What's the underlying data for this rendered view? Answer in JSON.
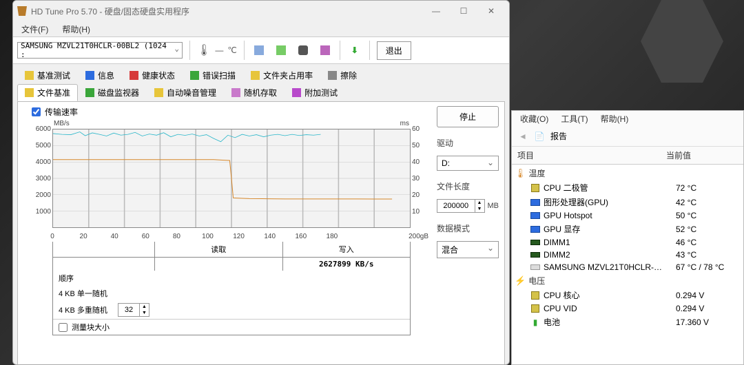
{
  "bg": {
    "base": "#2a2a2a"
  },
  "main": {
    "title": "HD Tune Pro 5.70 - 硬盘/固态硬盘实用程序",
    "menu": {
      "file": "文件(F)",
      "help": "帮助(H)"
    },
    "device": "SAMSUNG MZVL21T0HCLR-00BL2 (1024 :",
    "temp_dash": "—",
    "temp_unit": "℃",
    "exit": "退出",
    "tabs_row1": [
      {
        "label": "基准测试",
        "icon_bg": "#e7c53a"
      },
      {
        "label": "信息",
        "icon_bg": "#2d6cdf"
      },
      {
        "label": "健康状态",
        "icon_bg": "#d63a3a"
      },
      {
        "label": "错误扫描",
        "icon_bg": "#3aa63a"
      },
      {
        "label": "文件夹占用率",
        "icon_bg": "#e7c53a"
      },
      {
        "label": "擦除",
        "icon_bg": "#888"
      }
    ],
    "tabs_row2": [
      {
        "label": "文件基准",
        "icon_bg": "#e7c53a",
        "active": true
      },
      {
        "label": "磁盘监视器",
        "icon_bg": "#3aa63a"
      },
      {
        "label": "自动噪音管理",
        "icon_bg": "#e7c53a"
      },
      {
        "label": "随机存取",
        "icon_bg": "#c97acb"
      },
      {
        "label": "附加测试",
        "icon_bg": "#b84acb"
      }
    ],
    "chart": {
      "checkbox_label": "传输速率",
      "y_unit": "MB/s",
      "ms_unit": "ms",
      "x_unit": "200gB",
      "y_left": [
        6000,
        5000,
        4000,
        3000,
        2000,
        1000
      ],
      "y_right": [
        60,
        50,
        40,
        30,
        20,
        10
      ],
      "x_ticks": [
        0,
        20,
        40,
        60,
        80,
        100,
        120,
        140,
        160,
        180
      ],
      "x_max": 200,
      "y_max": 6000,
      "line1_color": "#26b6c9",
      "line2_color": "#d6872a",
      "grid_color": "#bbbbbb",
      "plot_bg": "#f3f3f3",
      "series1": [
        [
          0,
          5750
        ],
        [
          5,
          5700
        ],
        [
          10,
          5680
        ],
        [
          15,
          5850
        ],
        [
          18,
          5620
        ],
        [
          22,
          5790
        ],
        [
          26,
          5700
        ],
        [
          30,
          5600
        ],
        [
          34,
          5780
        ],
        [
          38,
          5650
        ],
        [
          42,
          5700
        ],
        [
          46,
          5820
        ],
        [
          50,
          5600
        ],
        [
          54,
          5720
        ],
        [
          58,
          5650
        ],
        [
          62,
          5800
        ],
        [
          66,
          5550
        ],
        [
          70,
          5700
        ],
        [
          74,
          5640
        ],
        [
          78,
          5720
        ],
        [
          82,
          5600
        ],
        [
          86,
          5680
        ],
        [
          90,
          5450
        ],
        [
          94,
          5250
        ],
        [
          98,
          5650
        ],
        [
          102,
          5500
        ],
        [
          106,
          5700
        ],
        [
          110,
          5600
        ],
        [
          114,
          5680
        ],
        [
          118,
          5550
        ],
        [
          122,
          5650
        ],
        [
          126,
          5700
        ],
        [
          130,
          5620
        ],
        [
          134,
          5700
        ],
        [
          138,
          5630
        ],
        [
          142,
          5680
        ],
        [
          146,
          5650
        ],
        [
          150,
          5700
        ]
      ],
      "series2": [
        [
          0,
          4150
        ],
        [
          10,
          4150
        ],
        [
          20,
          4150
        ],
        [
          30,
          4150
        ],
        [
          40,
          4150
        ],
        [
          50,
          4150
        ],
        [
          60,
          4150
        ],
        [
          70,
          4150
        ],
        [
          80,
          4150
        ],
        [
          90,
          4150
        ],
        [
          95,
          4120
        ],
        [
          99,
          4100
        ],
        [
          100,
          3000
        ],
        [
          101,
          1800
        ],
        [
          105,
          1780
        ],
        [
          110,
          1760
        ],
        [
          120,
          1750
        ],
        [
          130,
          1740
        ],
        [
          140,
          1740
        ],
        [
          150,
          1740
        ],
        [
          160,
          1740
        ],
        [
          170,
          1740
        ],
        [
          180,
          1730
        ],
        [
          190,
          1730
        ]
      ],
      "read_label": "读取",
      "write_label": "写入",
      "write_value": "2627899 KB/s",
      "seq_label": "顺序",
      "row4k_single": "4 KB 单一随机",
      "row4k_multi": "4 KB 多重随机",
      "multi_value": "32",
      "measure_label": "测量块大小"
    },
    "controls": {
      "stop": "停止",
      "drive_label": "驱动",
      "drive_value": "D:",
      "length_label": "文件长度",
      "length_value": "200000",
      "length_unit": "MB",
      "pattern_label": "数据模式",
      "pattern_value": "混合"
    }
  },
  "side": {
    "menu": {
      "fav": "收藏(O)",
      "tools": "工具(T)",
      "help": "帮助(H)"
    },
    "report": "报告",
    "col1": "项目",
    "col2": "当前值",
    "temp_header": "温度",
    "temp_color": "#d6872a",
    "volt_header": "电压",
    "volt_color": "#d6872a",
    "temp_rows": [
      {
        "icon": "cpu",
        "label": "CPU 二极管",
        "val": "72 °C"
      },
      {
        "icon": "gpu",
        "label": "图形处理器(GPU)",
        "val": "42 °C"
      },
      {
        "icon": "gpu",
        "label": "GPU Hotspot",
        "val": "50 °C"
      },
      {
        "icon": "gpu",
        "label": "GPU 显存",
        "val": "52 °C"
      },
      {
        "icon": "ram",
        "label": "DIMM1",
        "val": "46 °C"
      },
      {
        "icon": "ram",
        "label": "DIMM2",
        "val": "43 °C"
      },
      {
        "icon": "ssd",
        "label": "SAMSUNG MZVL21T0HCLR-…",
        "val": "67 °C / 78 °C"
      }
    ],
    "volt_rows": [
      {
        "icon": "cpu",
        "label": "CPU 核心",
        "val": "0.294 V"
      },
      {
        "icon": "cpu",
        "label": "CPU VID",
        "val": "0.294 V"
      },
      {
        "icon": "bat",
        "label": "电池",
        "val": "17.360 V"
      }
    ]
  }
}
